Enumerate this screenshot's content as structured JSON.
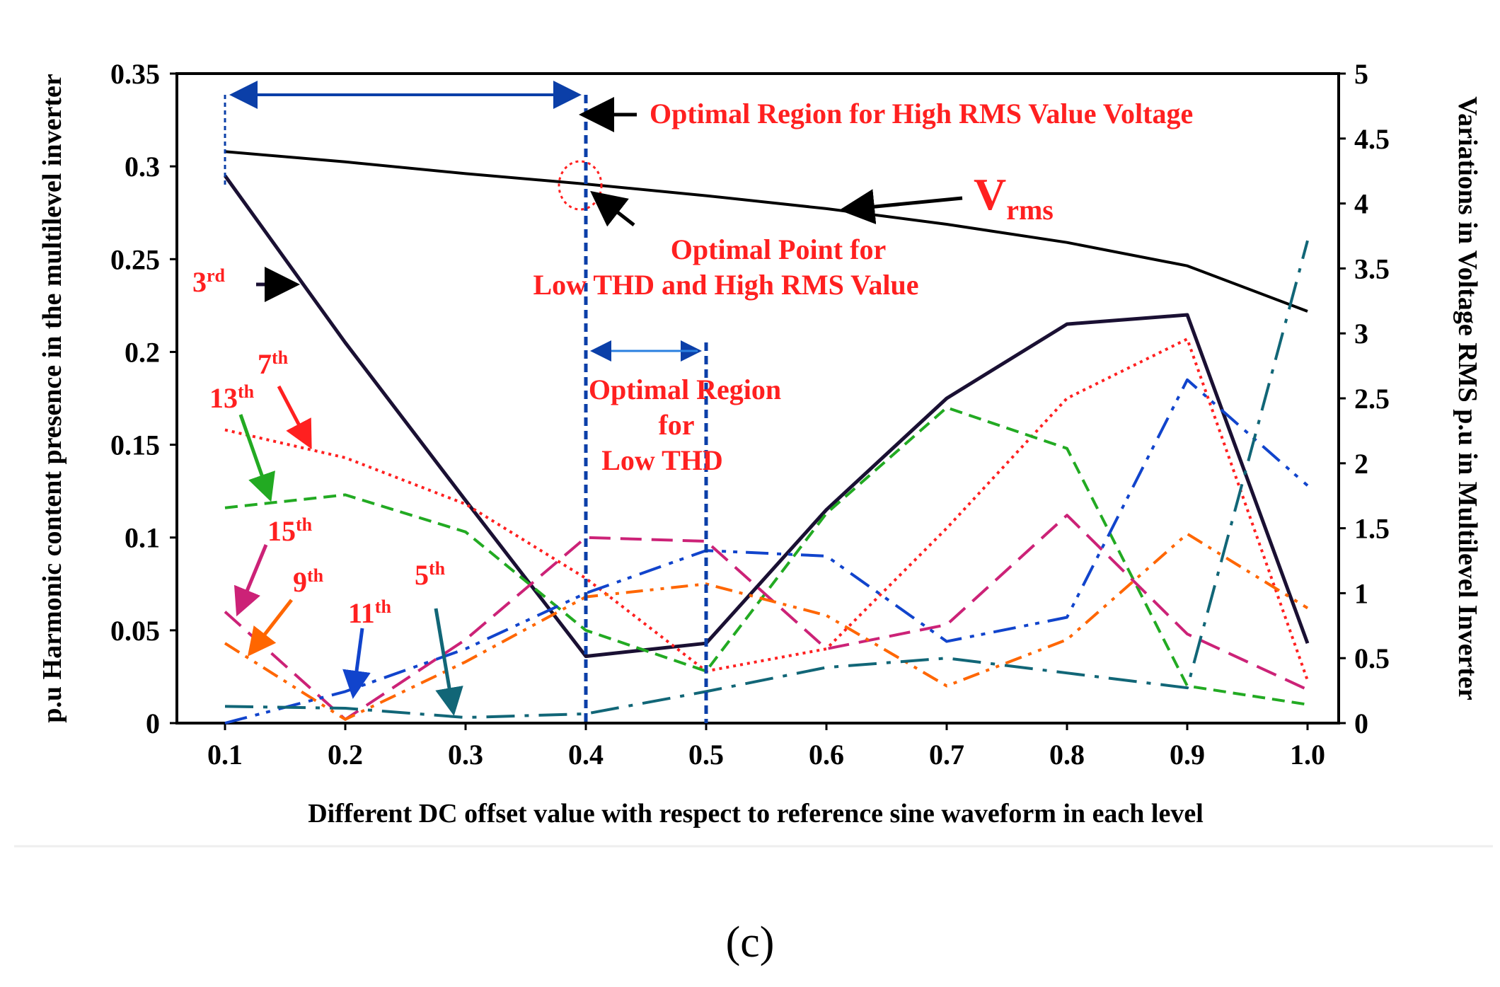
{
  "chart_data": {
    "type": "line",
    "title": "",
    "xlabel": "Different DC offset value with respect to reference sine waveform in each level",
    "ylabel": "p.u Harmonic content presence in the multilevel inverter",
    "y2label": "Variations in Voltage RMS p.u in Multilevel Inverter",
    "x": [
      0.1,
      0.2,
      0.3,
      0.4,
      0.5,
      0.6,
      0.7,
      0.8,
      0.9,
      1.0
    ],
    "x_tick_labels": [
      "0.1",
      "0.2",
      "0.3",
      "0.4",
      "0.5",
      "0.6",
      "0.7",
      "0.8",
      "0.9",
      "1.0"
    ],
    "ylim": [
      0,
      0.35
    ],
    "y_tick_labels": [
      "0",
      "0.05",
      "0.1",
      "0.15",
      "0.2",
      "0.25",
      "0.3",
      "0.35"
    ],
    "y_ticks": [
      0,
      0.05,
      0.1,
      0.15,
      0.2,
      0.25,
      0.3,
      0.35
    ],
    "y2lim": [
      0,
      5
    ],
    "y2_tick_labels": [
      "0",
      "0.5",
      "1",
      "1.5",
      "2",
      "2.5",
      "3",
      "3.5",
      "4",
      "4.5",
      "5"
    ],
    "y2_ticks": [
      0,
      0.5,
      1,
      1.5,
      2,
      2.5,
      3,
      3.5,
      4,
      4.5,
      5
    ],
    "series": [
      {
        "name": "Vrms",
        "axis": "right",
        "color": "#000000",
        "dash": "solid",
        "values": [
          4.4,
          4.32,
          4.23,
          4.15,
          4.06,
          3.96,
          3.84,
          3.7,
          3.52,
          3.17
        ]
      },
      {
        "name": "3rd",
        "axis": "left",
        "color": "#1a1033",
        "dash": "solid",
        "values": [
          0.295,
          0.205,
          0.12,
          0.036,
          0.043,
          0.115,
          0.175,
          0.215,
          0.22,
          0.043
        ]
      },
      {
        "name": "7th",
        "axis": "left",
        "color": "#ff2020",
        "dash": "dotted",
        "values": [
          0.158,
          0.143,
          0.118,
          0.078,
          0.028,
          0.04,
          0.105,
          0.175,
          0.207,
          0.023
        ]
      },
      {
        "name": "13th",
        "axis": "left",
        "color": "#22aa22",
        "dash": "dashed",
        "values": [
          0.116,
          0.123,
          0.103,
          0.05,
          0.028,
          0.113,
          0.17,
          0.148,
          0.02,
          0.01
        ]
      },
      {
        "name": "15th",
        "axis": "left",
        "color": "#cc2277",
        "dash": "longdash",
        "values": [
          0.06,
          0.002,
          0.045,
          0.1,
          0.098,
          0.04,
          0.053,
          0.112,
          0.048,
          0.018
        ]
      },
      {
        "name": "9th",
        "axis": "left",
        "color": "#ff6600",
        "dash": "dashdotdot",
        "values": [
          0.043,
          0.002,
          0.033,
          0.068,
          0.075,
          0.058,
          0.02,
          0.045,
          0.102,
          0.062
        ]
      },
      {
        "name": "11th",
        "axis": "left",
        "color": "#1144cc",
        "dash": "dashdotdot2",
        "values": [
          0.0,
          0.017,
          0.04,
          0.07,
          0.093,
          0.09,
          0.044,
          0.057,
          0.185,
          0.128
        ]
      },
      {
        "name": "5th",
        "axis": "left",
        "color": "#116677",
        "dash": "dashdot",
        "values": [
          0.009,
          0.008,
          0.003,
          0.005,
          0.017,
          0.03,
          0.035,
          0.027,
          0.019,
          0.26
        ]
      }
    ],
    "series_labels": {
      "3rd": {
        "base": "3",
        "sup": "rd"
      },
      "7th": {
        "base": "7",
        "sup": "th"
      },
      "13th": {
        "base": "13",
        "sup": "th"
      },
      "15th": {
        "base": "15",
        "sup": "th"
      },
      "9th": {
        "base": "9",
        "sup": "th"
      },
      "11th": {
        "base": "11",
        "sup": "th"
      },
      "5th": {
        "base": "5",
        "sup": "th"
      }
    },
    "annotations": {
      "optimal_rms_region": "Optimal Region for High RMS Value Voltage",
      "vrms_base": "V",
      "vrms_sub": "rms",
      "optimal_point_line1": "Optimal Point for",
      "optimal_point_line2": "Low THD and High RMS Value",
      "optimal_thd_line1": "Optimal Region",
      "optimal_thd_line2": "for",
      "optimal_thd_line3": "Low THD"
    },
    "regions": {
      "high_rms_x": [
        0.1,
        0.4
      ],
      "low_thd_x": [
        0.4,
        0.5
      ]
    }
  },
  "caption": "(c)",
  "colors": {
    "annotation": "#ff2020",
    "region_line": "#0b3fa8",
    "axis": "#000000"
  }
}
